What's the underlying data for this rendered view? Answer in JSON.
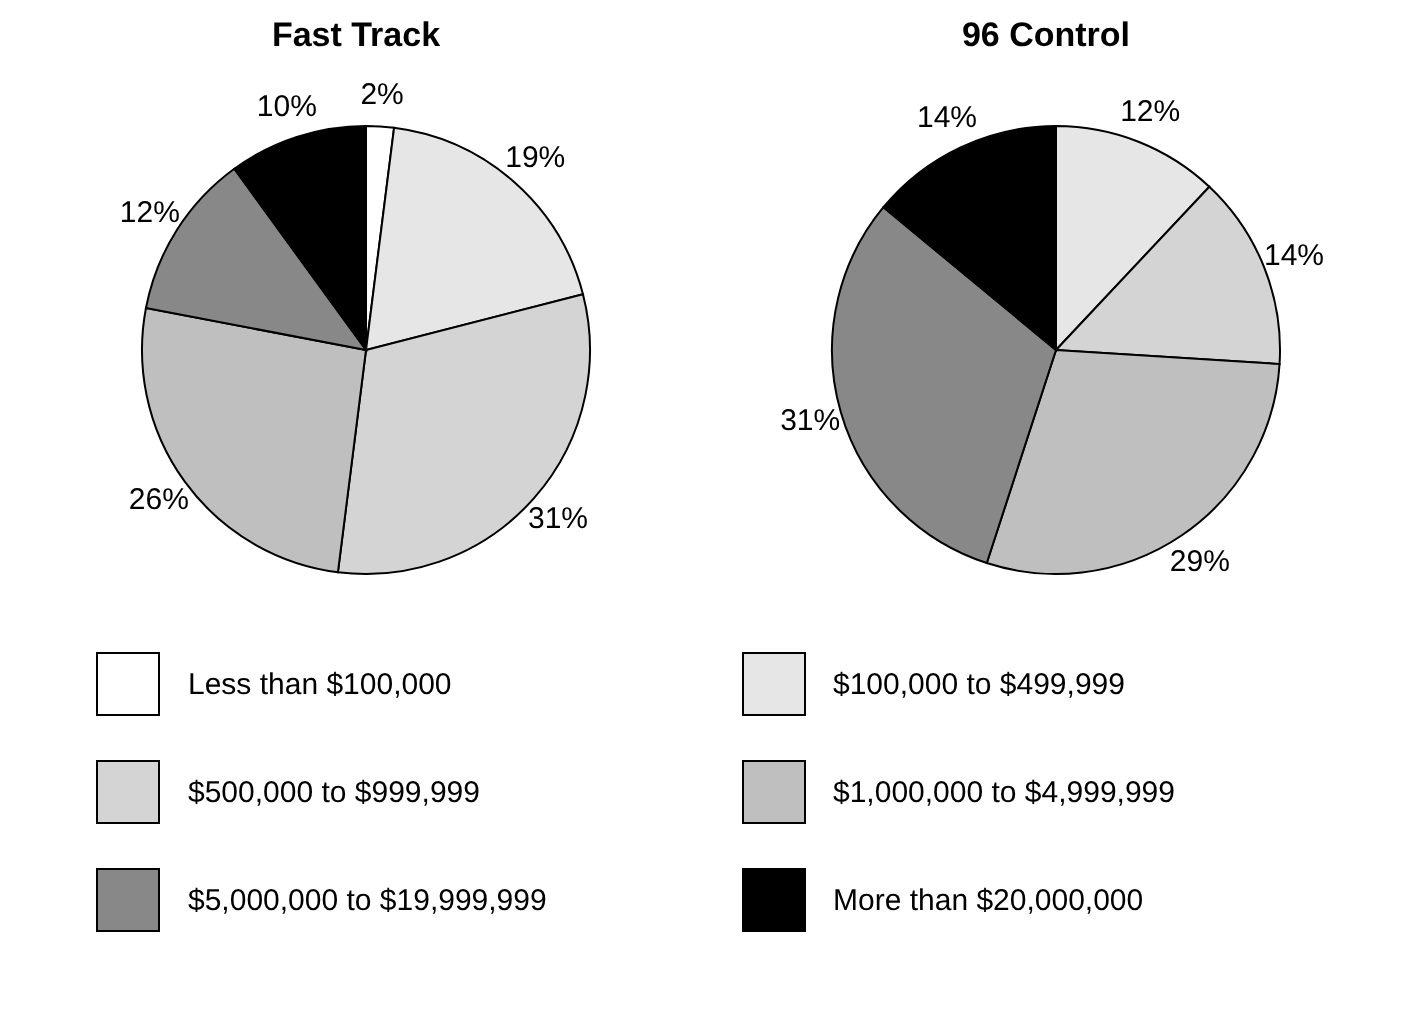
{
  "chart_data": [
    {
      "type": "pie",
      "title": "Fast Track",
      "categories": [
        "Less than $100,000",
        "$100,000 to $499,999",
        "$500,000 to $999,999",
        "$1,000,000 to $4,999,999",
        "$5,000,000 to $19,999,999",
        "More than $20,000,000"
      ],
      "values": [
        2,
        19,
        31,
        26,
        12,
        10
      ],
      "value_labels": [
        "2%",
        "19%",
        "31%",
        "26%",
        "12%",
        "10%"
      ],
      "colors": [
        "#ffffff",
        "#e6e6e6",
        "#d4d4d4",
        "#bfbfbf",
        "#888888",
        "#000000"
      ],
      "legend": "bottom"
    },
    {
      "type": "pie",
      "title": "96 Control",
      "categories": [
        null,
        null,
        null,
        null,
        null
      ],
      "values": [
        12,
        14,
        29,
        31,
        14
      ],
      "value_labels": [
        "12%",
        "14%",
        "29%",
        "31%",
        "14%"
      ],
      "colors": [
        "#e6e6e6",
        "#d4d4d4",
        "#bfbfbf",
        "#888888",
        "#000000"
      ]
    }
  ]
}
